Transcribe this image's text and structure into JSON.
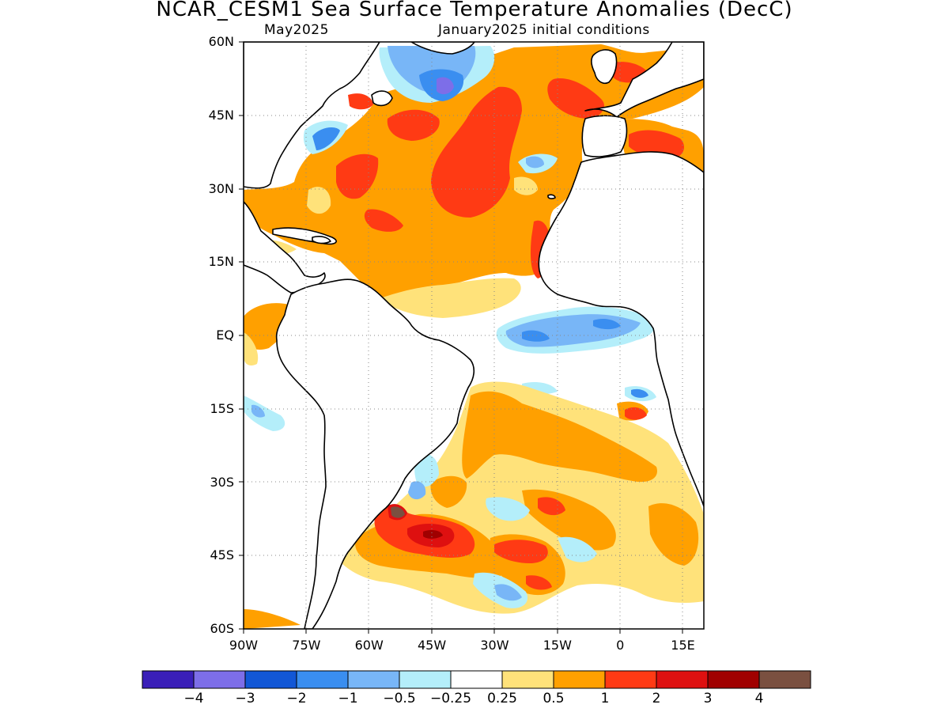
{
  "title": "NCAR_CESM1 Sea Surface Temperature Anomalies (DecC)",
  "subtitle_left": "May2025",
  "subtitle_right": "January2025 initial conditions",
  "map": {
    "lon_range": [
      -90,
      20
    ],
    "lat_range": [
      -60,
      60
    ],
    "lat_labels": [
      {
        "value": 60,
        "label": "60N"
      },
      {
        "value": 45,
        "label": "45N"
      },
      {
        "value": 30,
        "label": "30N"
      },
      {
        "value": 15,
        "label": "15N"
      },
      {
        "value": 0,
        "label": "EQ"
      },
      {
        "value": -15,
        "label": "15S"
      },
      {
        "value": -30,
        "label": "30S"
      },
      {
        "value": -45,
        "label": "45S"
      },
      {
        "value": -60,
        "label": "60S"
      }
    ],
    "lon_labels": [
      {
        "value": -90,
        "label": "90W"
      },
      {
        "value": -75,
        "label": "75W"
      },
      {
        "value": -60,
        "label": "60W"
      },
      {
        "value": -45,
        "label": "45W"
      },
      {
        "value": -30,
        "label": "30W"
      },
      {
        "value": -15,
        "label": "15W"
      },
      {
        "value": 0,
        "label": "0"
      },
      {
        "value": 15,
        "label": "15E"
      }
    ],
    "grid": "dotted"
  },
  "legend": {
    "colors": [
      "#3a1fb8",
      "#7d6ee8",
      "#1257d6",
      "#3a8ef0",
      "#78b6f7",
      "#b4eefa",
      "#ffffff",
      "#ffe27a",
      "#ffa000",
      "#ff3a14",
      "#de1010",
      "#a00000",
      "#7a5040"
    ],
    "labels": [
      "−4",
      "−3",
      "−2",
      "−1",
      "−0.5",
      "−0.25",
      "0.25",
      "0.5",
      "1",
      "2",
      "3",
      "4"
    ]
  }
}
